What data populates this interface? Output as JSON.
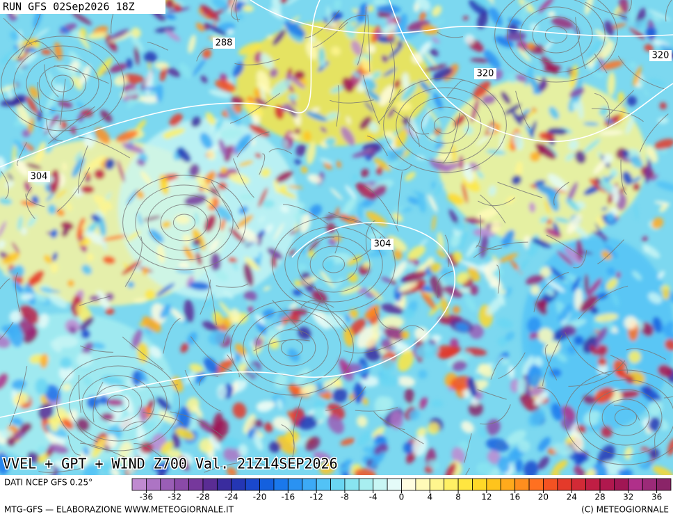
{
  "header": {
    "run": "RUN GFS 02Sep2026 18Z"
  },
  "map": {
    "contour_labels": [
      {
        "text": "288",
        "pos": [
          322,
          62
        ]
      },
      {
        "text": "304",
        "pos": [
          56,
          254
        ]
      },
      {
        "text": "320",
        "pos": [
          698,
          106
        ]
      },
      {
        "text": "320",
        "pos": [
          950,
          80
        ]
      },
      {
        "text": "304",
        "pos": [
          550,
          351
        ]
      }
    ],
    "title": "VVEL + GPT + WIND Z700 Val. 21Z14SEP2026"
  },
  "footer": {
    "source": "DATI NCEP GFS 0.25°",
    "credit": "MTG-GFS — ELABORAZIONE WWW.METEOGIORNALE.IT",
    "copyright": "(C) METEOGIORNALE"
  },
  "colorbar": {
    "range": [
      -38,
      38
    ],
    "ticks": [
      -36,
      -32,
      -28,
      -24,
      -20,
      -16,
      -12,
      -8,
      -4,
      0,
      4,
      8,
      12,
      16,
      20,
      24,
      28,
      32,
      36
    ],
    "colors": [
      "#c08ad0",
      "#ad74c4",
      "#9a5eb6",
      "#8a4aa8",
      "#76389c",
      "#5a2c94",
      "#3a2c9e",
      "#2436b4",
      "#1a48cc",
      "#1460de",
      "#1a78ec",
      "#2a92f2",
      "#3caaf6",
      "#52c2f6",
      "#6ad6f2",
      "#88e4f0",
      "#a8eef0",
      "#c8f6f4",
      "#e4fbf8",
      "#fffde0",
      "#fffab8",
      "#fff68e",
      "#fff064",
      "#ffe640",
      "#ffd828",
      "#ffc41c",
      "#ffaa1c",
      "#ff8e1e",
      "#ff7020",
      "#f45222",
      "#e43a2a",
      "#d22a36",
      "#c01e44",
      "#b0184e",
      "#a01654",
      "#b0308a",
      "#9c2a78",
      "#8a2468"
    ]
  }
}
